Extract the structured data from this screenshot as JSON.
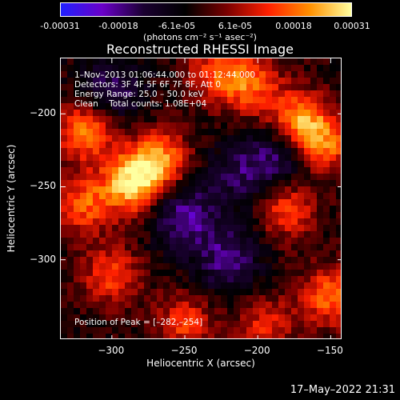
{
  "chart_data": {
    "type": "heatmap",
    "title": "Reconstructed RHESSI Image",
    "xlabel": "Heliocentric X (arcsec)",
    "ylabel": "Heliocentric Y (arcsec)",
    "xlim": [
      -335,
      -142
    ],
    "ylim": [
      -355,
      -162
    ],
    "xticks": [
      -300,
      -250,
      -200,
      -150
    ],
    "yticks": [
      -200,
      -250,
      -300
    ],
    "colorbar": {
      "range": [
        -0.00031,
        0.00031
      ],
      "tick_labels": [
        "-0.00031",
        "-0.00018",
        "-6.1e-05",
        "6.1e-05",
        "0.00018",
        "0.00031"
      ],
      "units": "(photons cm⁻² s⁻¹ asec⁻²)",
      "colors": [
        "#2020ff",
        "#6a00c8",
        "#1a0030",
        "#000000",
        "#7a0000",
        "#ff2000",
        "#ff9000",
        "#ffffa0"
      ]
    },
    "annotations": {
      "time": "1–Nov–2013 01:06:44.000 to 01:12:44.000",
      "detectors": "Detectors: 3F 4F 5F 6F 7F 8F, Att 0",
      "energy": "Energy Range: 25.0 – 50.0 keV",
      "method": "Clean    Total counts: 1.08E+04",
      "peak": "Position of Peak = [–282,–254]"
    },
    "peak": [
      -282,
      -254
    ],
    "bright_regions": [
      {
        "x": -287,
        "y": -248,
        "value": 0.00029
      },
      {
        "x": -268,
        "y": -232,
        "value": 0.00025
      },
      {
        "x": -318,
        "y": -212,
        "value": 0.00024
      },
      {
        "x": -172,
        "y": -205,
        "value": 0.00026
      },
      {
        "x": -155,
        "y": -222,
        "value": 0.00022
      },
      {
        "x": -205,
        "y": -180,
        "value": 0.0002
      },
      {
        "x": -150,
        "y": -325,
        "value": 0.00021
      },
      {
        "x": -180,
        "y": -265,
        "value": 0.00018
      },
      {
        "x": -300,
        "y": -310,
        "value": 0.00017
      },
      {
        "x": -250,
        "y": -343,
        "value": 0.00016
      },
      {
        "x": -320,
        "y": -262,
        "value": 0.00019
      },
      {
        "x": -230,
        "y": -172,
        "value": 0.00015
      },
      {
        "x": -195,
        "y": -345,
        "value": 0.00014
      }
    ],
    "dim_regions": [
      {
        "x": -250,
        "y": -270,
        "value": -0.00018
      },
      {
        "x": -220,
        "y": -300,
        "value": -0.00016
      },
      {
        "x": -180,
        "y": -228,
        "value": -0.00015
      },
      {
        "x": -300,
        "y": -185,
        "value": -0.00014
      },
      {
        "x": -210,
        "y": -240,
        "value": -0.00013
      }
    ]
  },
  "timestamp": "17–May–2022 21:31"
}
